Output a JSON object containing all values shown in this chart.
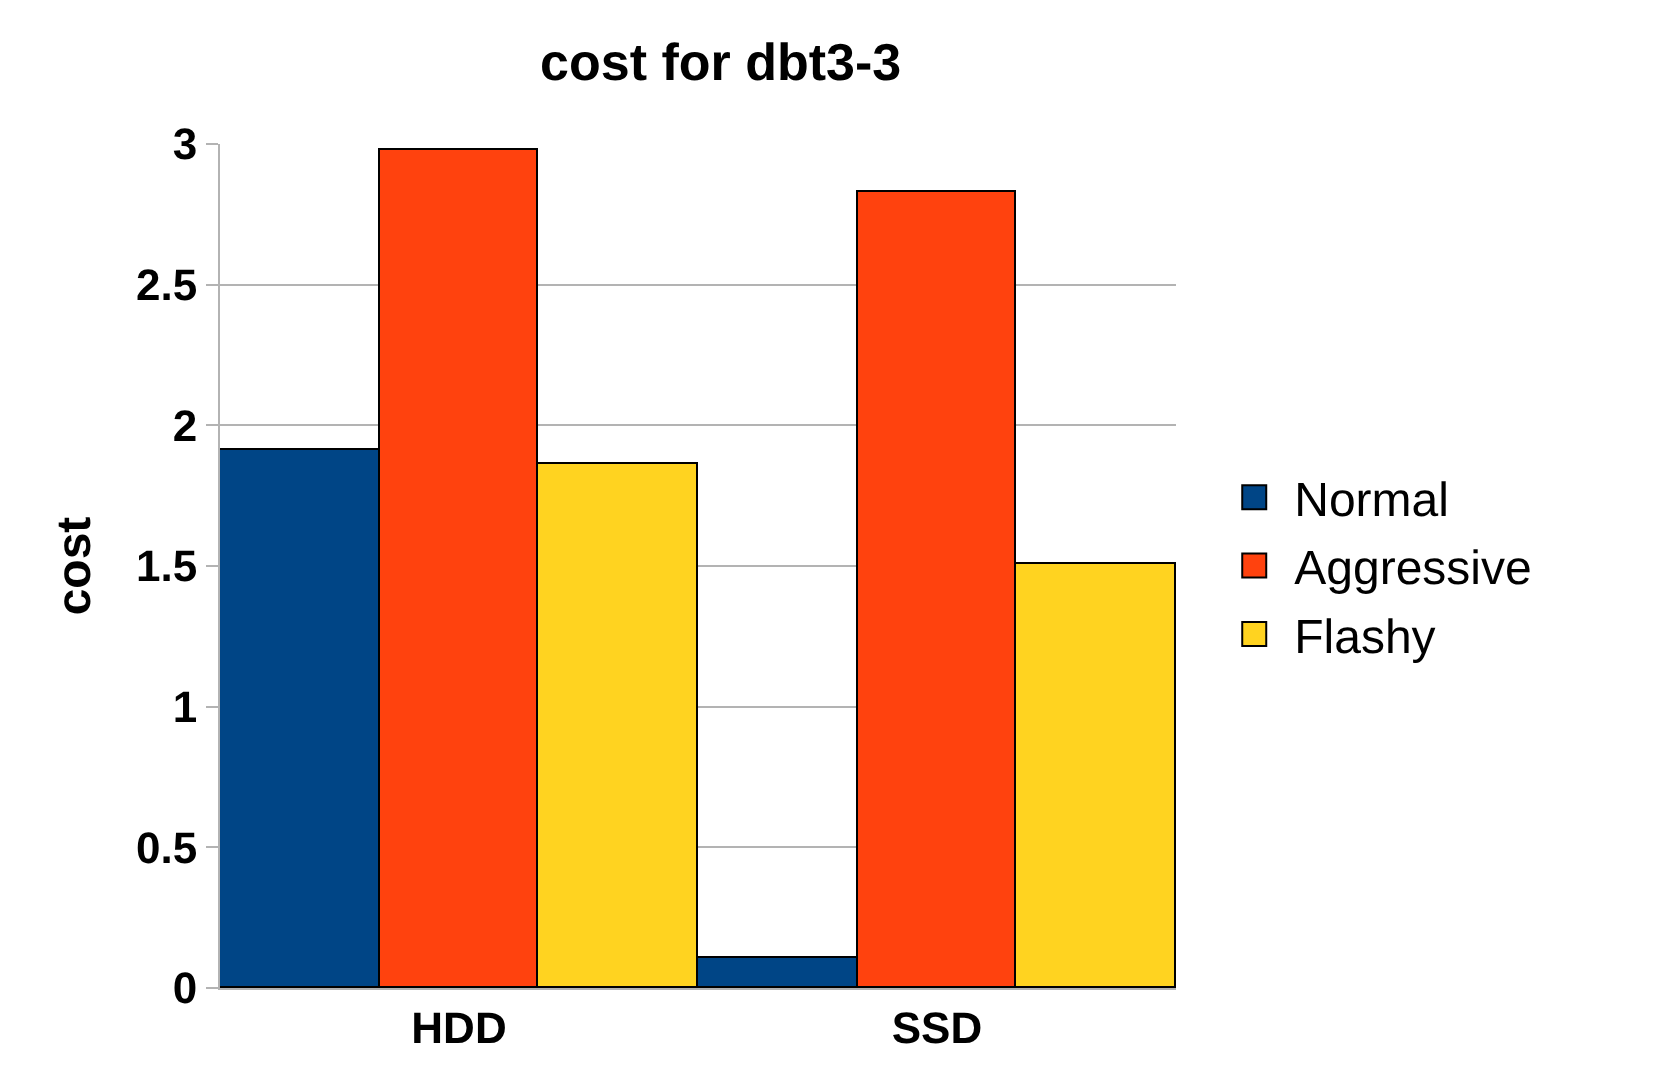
{
  "chart_data": {
    "type": "bar",
    "title": "cost for dbt3-3",
    "ylabel": "cost",
    "categories": [
      "HDD",
      "SSD"
    ],
    "series": [
      {
        "name": "Normal",
        "color": "#004586",
        "values": [
          1.91,
          0.11
        ]
      },
      {
        "name": "Aggressive",
        "color": "#ff420e",
        "values": [
          2.98,
          2.83
        ]
      },
      {
        "name": "Flashy",
        "color": "#ffd320",
        "values": [
          1.86,
          1.51
        ]
      }
    ],
    "ylim": [
      0,
      3
    ],
    "yticks": [
      0,
      0.5,
      1,
      1.5,
      2,
      2.5,
      3
    ],
    "grid": "y",
    "legend": "right"
  }
}
